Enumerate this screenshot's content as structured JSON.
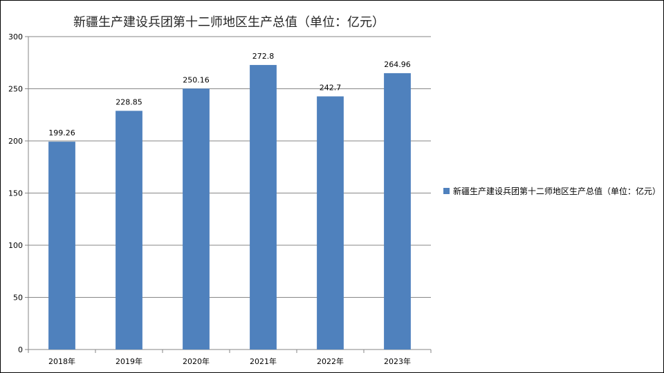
{
  "chart_data": {
    "type": "bar",
    "title": "新疆生产建设兵团第十二师地区生产总值（单位：亿元）",
    "categories": [
      "2018年",
      "2019年",
      "2020年",
      "2021年",
      "2022年",
      "2023年"
    ],
    "series": [
      {
        "name": "新疆生产建设兵团第十二师地区生产总值（单位：亿元）",
        "values": [
          199.26,
          228.85,
          250.16,
          272.8,
          242.7,
          264.96
        ],
        "labels": [
          "199.26",
          "228.85",
          "250.16",
          "272.8",
          "242.7",
          "264.96"
        ]
      }
    ],
    "ylim": [
      0,
      300
    ],
    "yticks": [
      0,
      50,
      100,
      150,
      200,
      250,
      300
    ],
    "grid": true,
    "legend_position": "right",
    "bar_color": "#4F81BD"
  }
}
